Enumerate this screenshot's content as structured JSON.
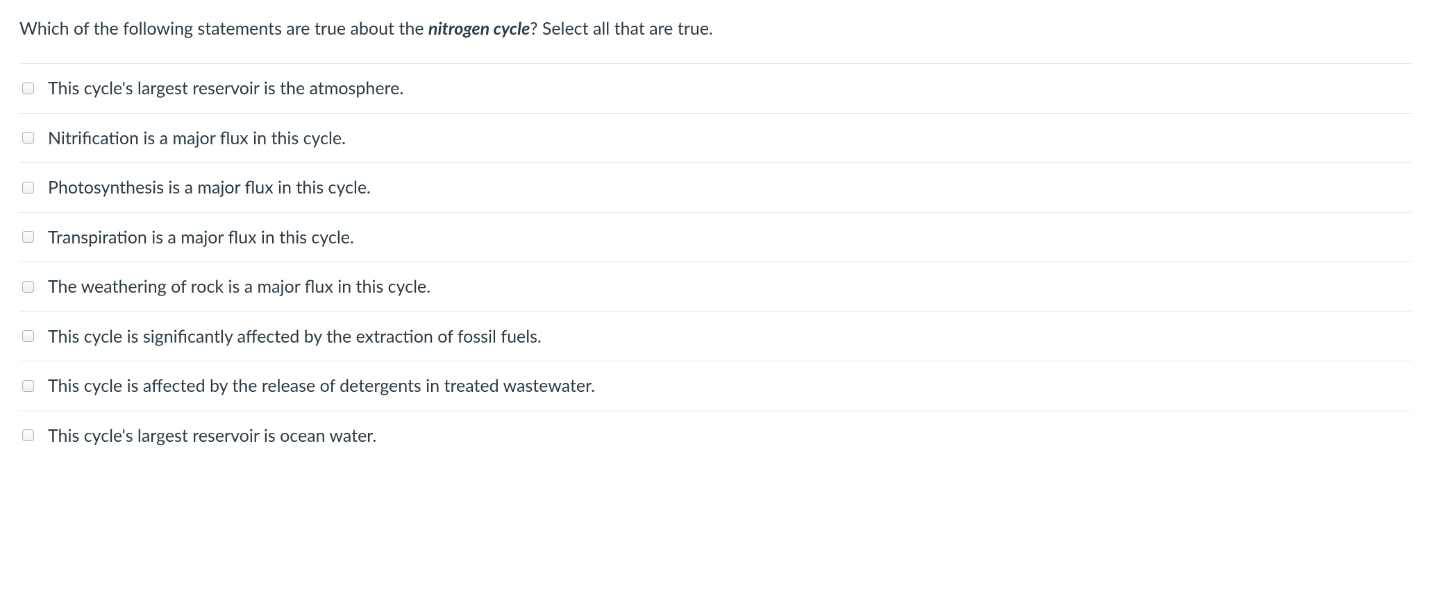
{
  "question": {
    "prefix": "Which of the following statements are true about the ",
    "emphasis": "nitrogen cycle",
    "suffix": "? Select all that are true."
  },
  "options": [
    {
      "label": "This cycle's largest reservoir is the atmosphere."
    },
    {
      "label": "Nitrification is a major flux in this cycle."
    },
    {
      "label": "Photosynthesis is a major flux in this cycle."
    },
    {
      "label": "Transpiration is a major flux in this cycle."
    },
    {
      "label": "The weathering of rock is a major flux in this cycle."
    },
    {
      "label": "This cycle is significantly affected by the extraction of fossil fuels."
    },
    {
      "label": "This cycle is affected by the release of detergents in treated wastewater."
    },
    {
      "label": "This cycle's largest reservoir is ocean water."
    }
  ]
}
